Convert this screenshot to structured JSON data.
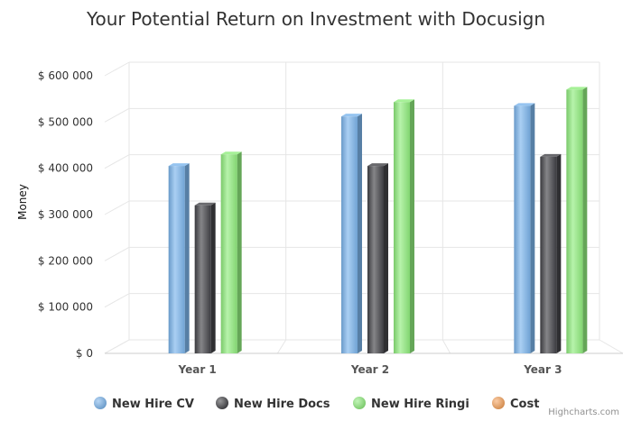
{
  "chart_data": {
    "type": "bar",
    "title": "Your Potential Return on Investment with Docusign",
    "xlabel": "",
    "ylabel": "Money",
    "categories": [
      "Year 1",
      "Year 2",
      "Year 3"
    ],
    "ylim": [
      0,
      600000
    ],
    "yticks": [
      0,
      100000,
      200000,
      300000,
      400000,
      500000,
      600000
    ],
    "ytick_labels": [
      "$ 0",
      "$ 100 000",
      "$ 200 000",
      "$ 300 000",
      "$ 400 000",
      "$ 500 000",
      "$ 600 000"
    ],
    "grid": true,
    "legend_position": "bottom",
    "series": [
      {
        "name": "New Hire CV",
        "values": [
          405000,
          512000,
          535000
        ],
        "color": "#7cb5ec"
      },
      {
        "name": "New Hire Docs",
        "values": [
          320000,
          405000,
          425000
        ],
        "color": "#434348"
      },
      {
        "name": "New Hire Ringi",
        "values": [
          430000,
          543000,
          570000
        ],
        "color": "#90ed7d"
      },
      {
        "name": "Cost",
        "values": [
          0,
          0,
          0
        ],
        "color": "#f7a35c"
      }
    ],
    "credits": "Highcharts.com"
  }
}
